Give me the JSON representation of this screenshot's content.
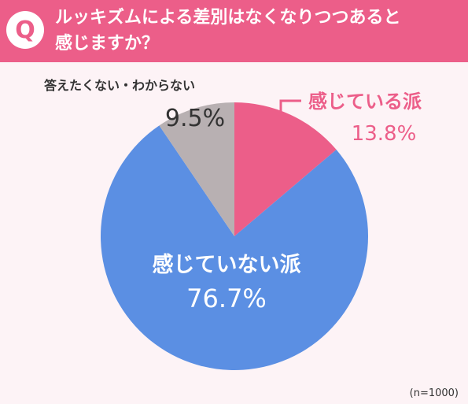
{
  "question": {
    "icon": "Q",
    "text_line1": "ルッキズムによる差別はなくなりつつあると",
    "text_line2": "感じますか？"
  },
  "colors": {
    "header": "#ec5e89",
    "background": "#fdf3f6"
  },
  "chart_data": {
    "type": "pie",
    "slices": [
      {
        "label": "感じている派",
        "value": 13.8,
        "display": "13.8%",
        "color": "#ec5e89",
        "label_color": "#ec5e89"
      },
      {
        "label": "感じていない派",
        "value": 76.7,
        "display": "76.7%",
        "color": "#5b8fe3",
        "label_color": "#ffffff"
      },
      {
        "label": "答えたくない・わからない",
        "value": 9.5,
        "display": "9.5%",
        "color": "#b8b0b2",
        "label_color": "#333333"
      }
    ],
    "start": "top",
    "direction": "clockwise"
  },
  "footnote": "(n=1000)"
}
